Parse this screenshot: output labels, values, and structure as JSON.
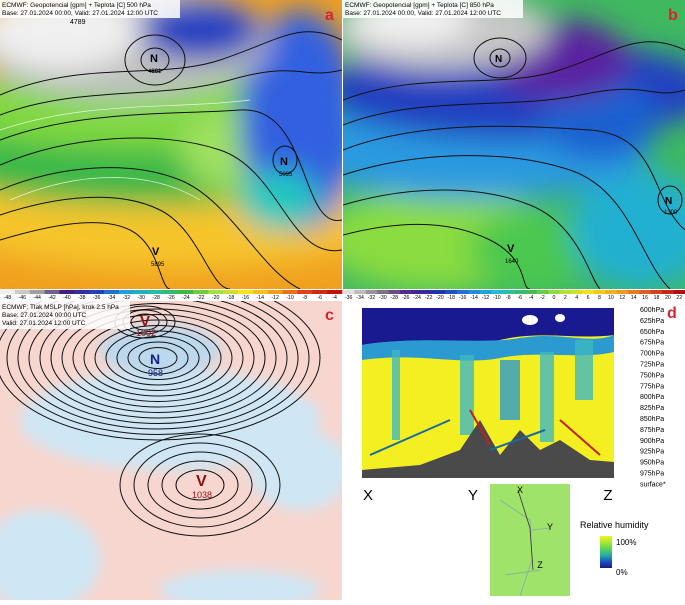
{
  "panels": {
    "a": {
      "title": "ECMWF: Geopotencial [gpm] + Teplota [C] 500 hPa",
      "base": "Base: 27.01.2024 00:00, Valid: 27.01.2024 12:00 UTC",
      "letter": "a",
      "labels": [
        "4789",
        "N",
        "4861",
        "N",
        "5095",
        "V",
        "5895"
      ],
      "colorbar": [
        -48,
        -46,
        -44,
        -42,
        -40,
        -38,
        -36,
        -34,
        -32,
        -30,
        -28,
        -26,
        -24,
        -22,
        -20,
        -18,
        -16,
        -14,
        -12,
        -10,
        -8,
        -6,
        -4
      ]
    },
    "b": {
      "title": "ECMWF: Geopotencial [gpm] + Teplota [C] 850 hPa",
      "base": "Base: 27.01.2024 00:00, Valid: 27.01.2024 12:00 UTC",
      "letter": "b",
      "labels": [
        "N",
        "N",
        "1300",
        "V",
        "1640"
      ],
      "colorbar": [
        -36,
        -34,
        -32,
        -30,
        -28,
        -26,
        -24,
        -22,
        -20,
        -18,
        -16,
        -14,
        -12,
        -10,
        -8,
        -6,
        -4,
        -2,
        0,
        2,
        4,
        6,
        8,
        10,
        12,
        14,
        16,
        18,
        20,
        22
      ]
    },
    "c": {
      "title": "ECMWF: Tlak MSLP [hPa], krok 2.5 hPa",
      "base": "Base: 27.01.2024 00:00 UTC",
      "valid": "Valid: 27.01.2024 12:00 UTC",
      "letter": "c",
      "labels": [
        "V",
        "1002",
        "N",
        "958",
        "V",
        "1038"
      ]
    },
    "d": {
      "letter": "d",
      "levels": [
        "600hPa",
        "625hPa",
        "650hPa",
        "675hPa",
        "700hPa",
        "725hPa",
        "750hPa",
        "775hPa",
        "800hPa",
        "825hPa",
        "850hPa",
        "875hPa",
        "900hPa",
        "925hPa",
        "950hPa",
        "975hPa",
        "surface*"
      ],
      "points": [
        "X",
        "Y",
        "Z"
      ],
      "map_points": [
        "X",
        "Y",
        "Z"
      ],
      "legend_title": "Relative humidity",
      "legend_max": "100%",
      "legend_min": "0%"
    }
  }
}
